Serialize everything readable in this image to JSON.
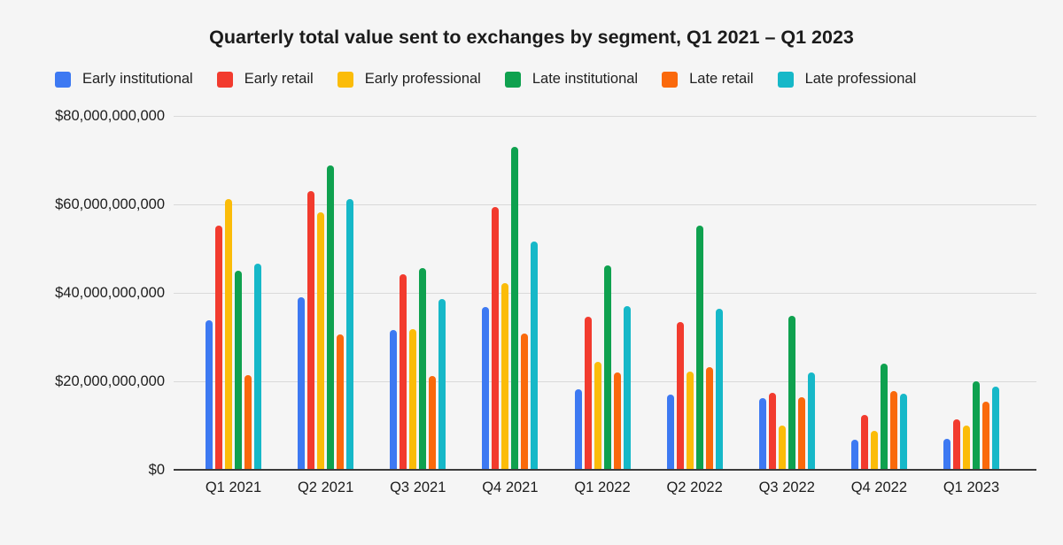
{
  "title": "Quarterly total value sent to exchanges by segment, Q1 2021 – Q1 2023",
  "colors": {
    "background": "#f5f5f5",
    "gridline": "#d9d9d9",
    "axis_line": "#3b3b3b",
    "text": "#1c1c1c"
  },
  "chart_data": {
    "type": "bar",
    "title": "Quarterly total value sent to exchanges by segment, Q1 2021 – Q1 2023",
    "xlabel": "",
    "ylabel": "",
    "values_unit": "USD billions",
    "ylim": [
      0,
      80
    ],
    "grid": true,
    "legend_position": "top",
    "categories": [
      "Q1 2021",
      "Q2 2021",
      "Q3 2021",
      "Q4 2021",
      "Q1 2022",
      "Q2 2022",
      "Q3 2022",
      "Q4 2022",
      "Q1 2023"
    ],
    "yticks": [
      {
        "value": 0,
        "label": "$0"
      },
      {
        "value": 20,
        "label": "$20,000,000,000"
      },
      {
        "value": 40,
        "label": "$40,000,000,000"
      },
      {
        "value": 60,
        "label": "$60,000,000,000"
      },
      {
        "value": 80,
        "label": "$80,000,000,000"
      }
    ],
    "series": [
      {
        "name": "Early institutional",
        "color": "#3d79f2",
        "values": [
          33.8,
          39.0,
          31.7,
          36.9,
          18.3,
          17.0,
          16.3,
          6.9,
          7.0
        ]
      },
      {
        "name": "Early retail",
        "color": "#f23b2e",
        "values": [
          55.2,
          63.0,
          44.3,
          59.5,
          34.7,
          33.5,
          17.4,
          12.4,
          11.5
        ]
      },
      {
        "name": "Early professional",
        "color": "#fbbc09",
        "values": [
          61.3,
          58.2,
          31.8,
          42.3,
          24.4,
          22.2,
          10.0,
          8.9,
          10.0
        ]
      },
      {
        "name": "Late institutional",
        "color": "#0fa14f",
        "values": [
          45.0,
          68.9,
          45.6,
          73.0,
          46.2,
          55.3,
          34.8,
          24.1,
          20.1
        ]
      },
      {
        "name": "Late retail",
        "color": "#fa690c",
        "values": [
          21.4,
          30.7,
          21.3,
          30.9,
          22.0,
          23.3,
          16.5,
          17.9,
          15.4
        ]
      },
      {
        "name": "Late professional",
        "color": "#16b8c8",
        "values": [
          46.6,
          61.2,
          38.6,
          51.6,
          37.0,
          36.4,
          22.0,
          17.3,
          18.9
        ]
      }
    ]
  }
}
